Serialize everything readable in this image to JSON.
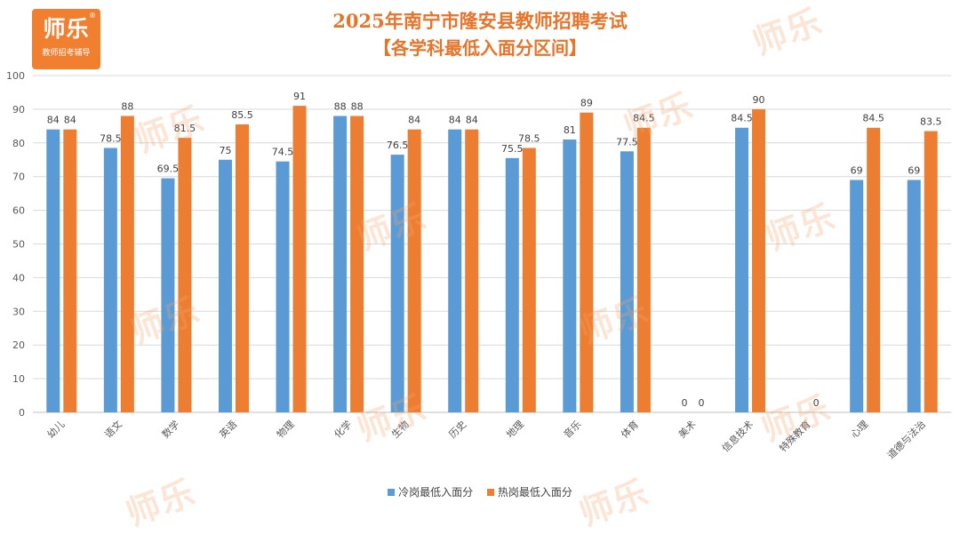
{
  "logo": {
    "mark": "师乐",
    "sub": "教师招考辅导",
    "reg": "®"
  },
  "watermark": "师乐",
  "chart_data": {
    "type": "bar",
    "title": "2025年南宁市隆安县教师招聘考试",
    "subtitle": "【各学科最低入面分区间】",
    "categories": [
      "幼儿",
      "语文",
      "数学",
      "英语",
      "物理",
      "化学",
      "生物",
      "历史",
      "地理",
      "音乐",
      "体育",
      "美术",
      "信息技术",
      "特殊教育",
      "心理",
      "道德与法治"
    ],
    "series": [
      {
        "name": "冷岗最低入面分",
        "color": "#5b9bd5",
        "values": [
          84,
          78.5,
          69.5,
          75,
          74.5,
          88,
          76.5,
          84,
          75.5,
          81,
          77.5,
          0,
          84.5,
          0,
          69,
          69
        ],
        "labels": [
          "84",
          "78.5",
          "69.5",
          "75",
          "74.5",
          "88",
          "76.5",
          "84",
          "75.5",
          "81",
          "77.5",
          "0",
          "84.5",
          "",
          "69",
          "69"
        ]
      },
      {
        "name": "热岗最低入面分",
        "color": "#ed7d31",
        "values": [
          84,
          88,
          81.5,
          85.5,
          91,
          88,
          84,
          84,
          78.5,
          89,
          84.5,
          0,
          90,
          0,
          84.5,
          83.5
        ],
        "labels": [
          "84",
          "88",
          "81.5",
          "85.5",
          "91",
          "88",
          "84",
          "84",
          "78.5",
          "89",
          "84.5",
          "0",
          "90",
          "0",
          "84.5",
          "83.5"
        ]
      }
    ],
    "ylim": [
      0,
      100
    ],
    "yticks": [
      "0",
      "10",
      "20",
      "30",
      "40",
      "50",
      "60",
      "70",
      "80",
      "90",
      "100"
    ],
    "grid": true,
    "legend": "bottom",
    "xlabel": "",
    "ylabel": ""
  }
}
